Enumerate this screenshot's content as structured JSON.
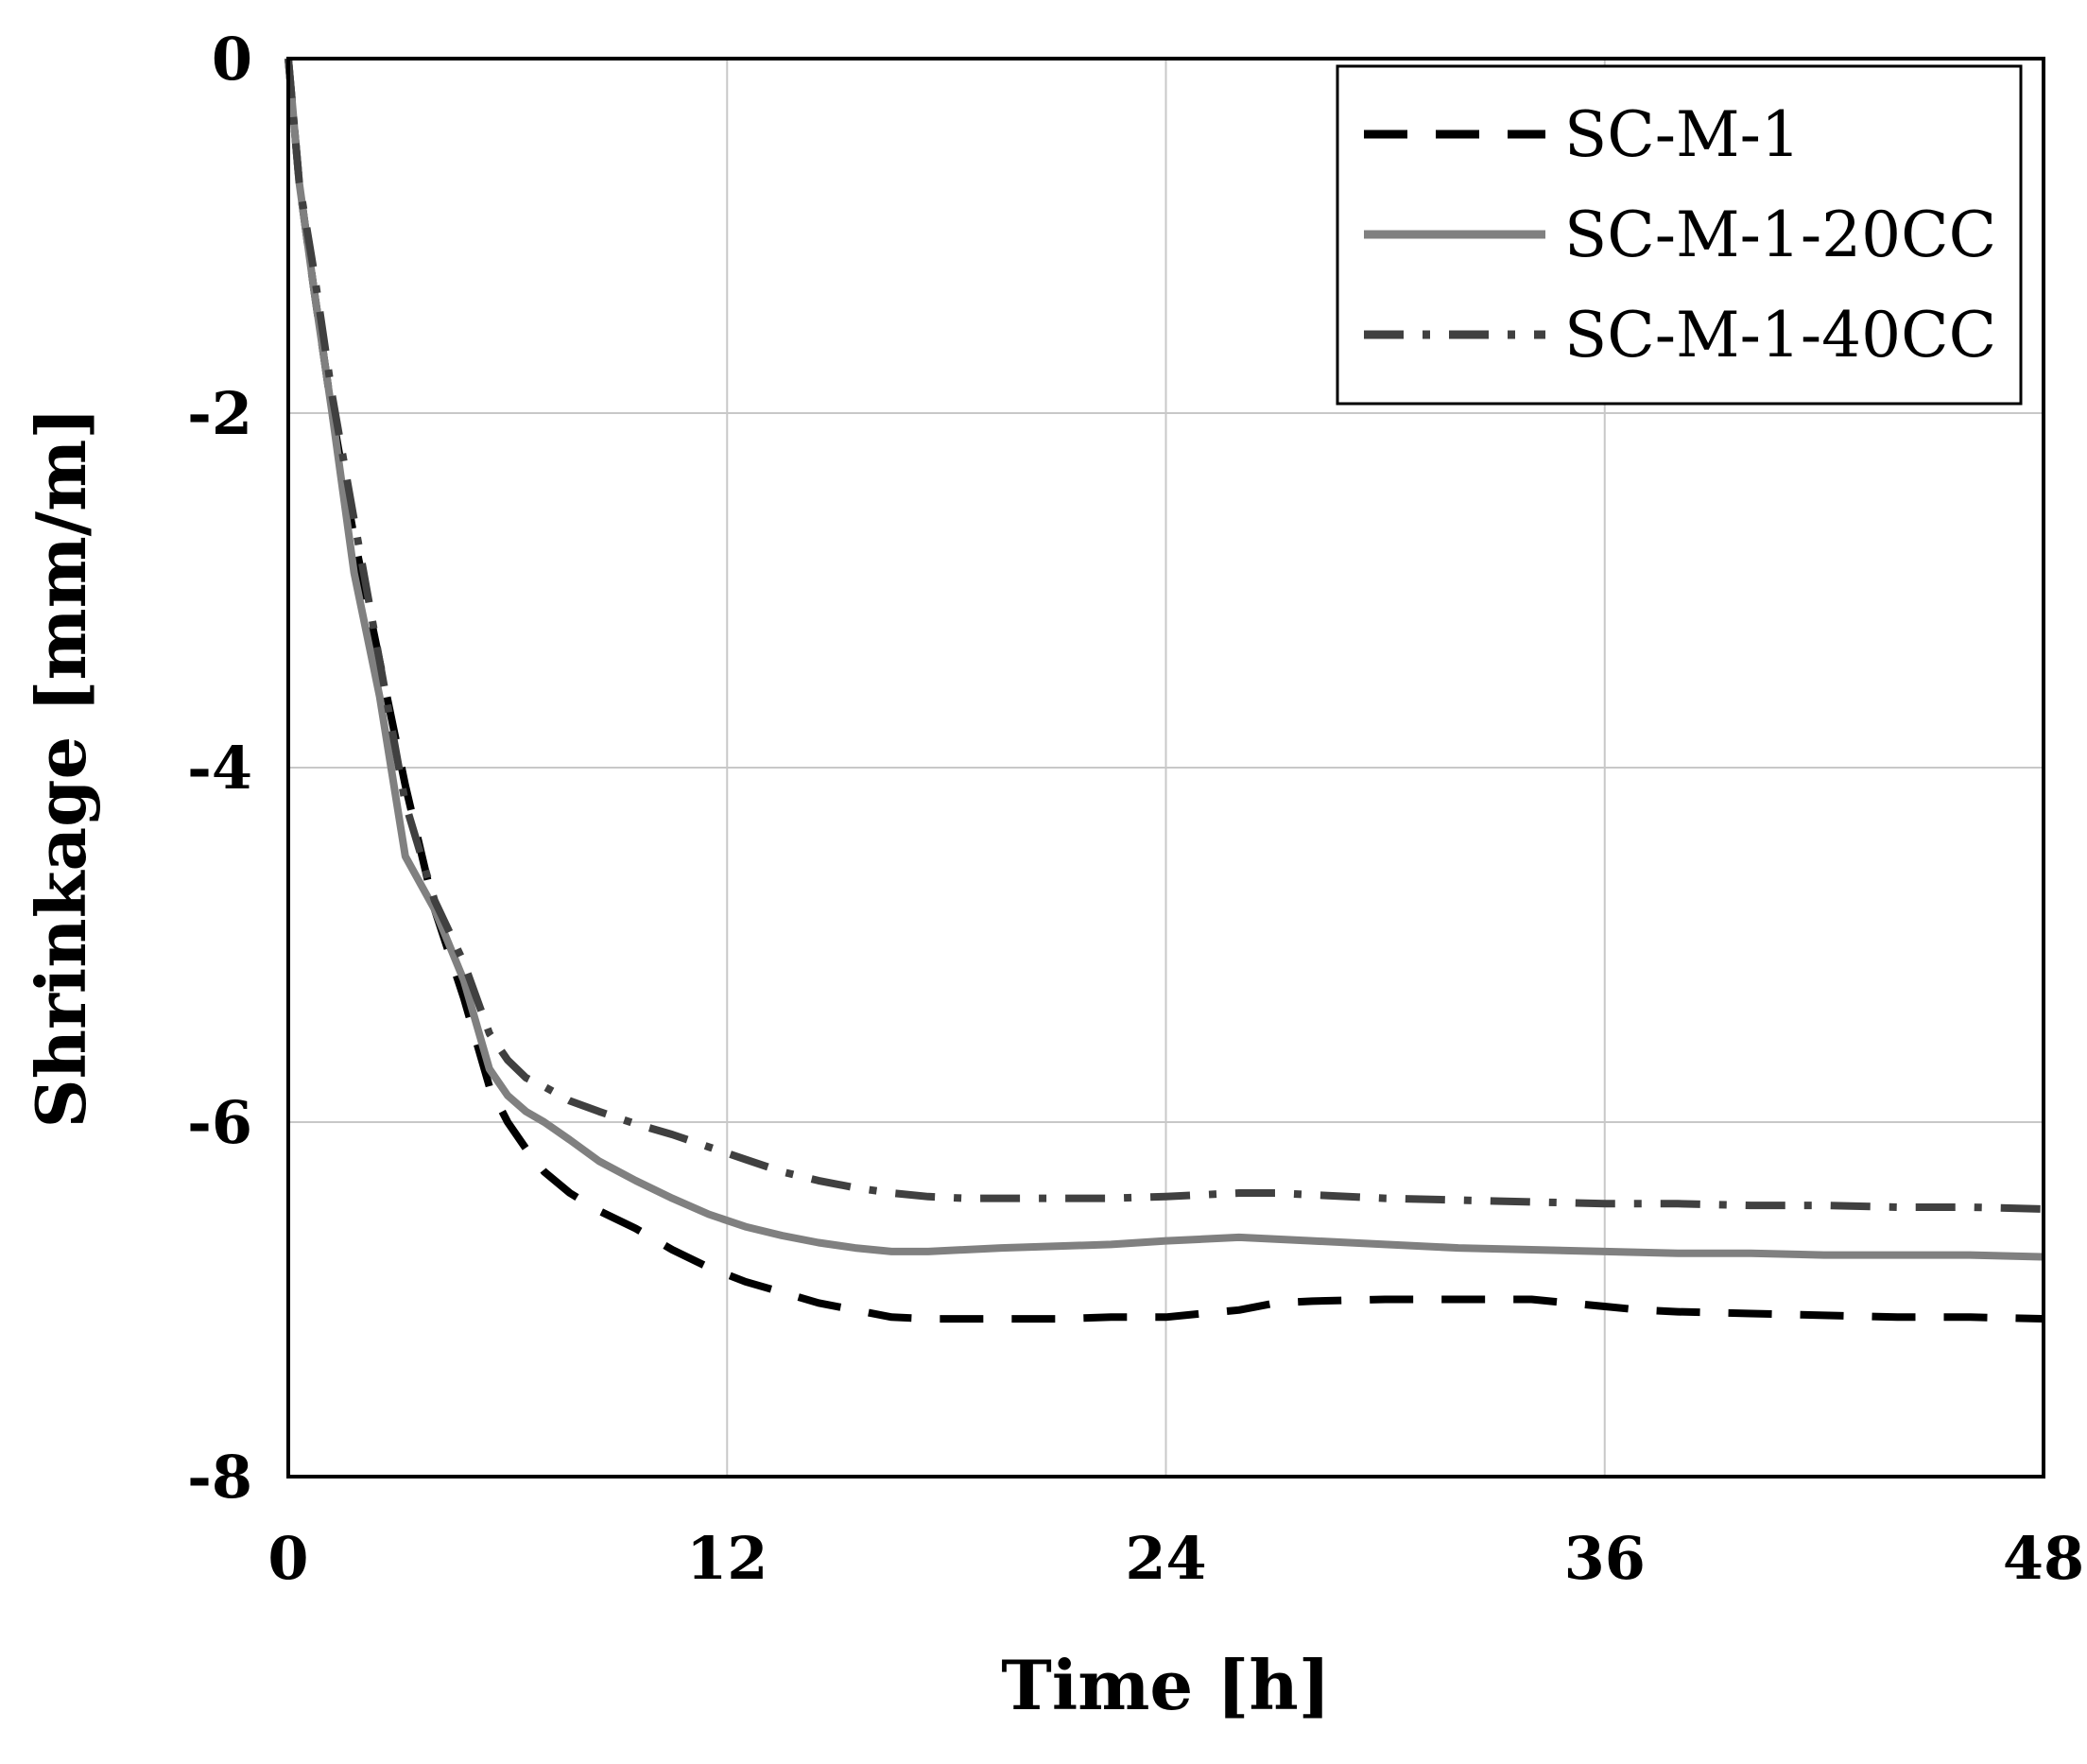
{
  "chart_data": {
    "type": "line",
    "title": "",
    "xlabel": "Time [h]",
    "ylabel": "Shrinkage [mm/m]",
    "xlim": [
      0,
      48
    ],
    "ylim": [
      -8,
      0
    ],
    "xticks": [
      0,
      12,
      24,
      36,
      48
    ],
    "yticks": [
      0,
      -2,
      -4,
      -6,
      -8
    ],
    "xtick_labels": [
      "0",
      "12",
      "24",
      "36",
      "48"
    ],
    "ytick_labels": [
      "0",
      "-2",
      "-4",
      "-6",
      "-8"
    ],
    "grid": true,
    "legend": {
      "position": "top-right",
      "entries": [
        "SC-M-1",
        "SC-M-1-20CC",
        "SC-M-1-40CC"
      ]
    },
    "series": [
      {
        "name": "SC-M-1",
        "color": "#000000",
        "style": "dashed",
        "x": [
          0,
          0.3,
          0.7,
          1.2,
          1.8,
          2.5,
          3.2,
          4.0,
          4.8,
          5.5,
          6.0,
          6.5,
          7.0,
          7.7,
          8.5,
          9.5,
          10.5,
          11.5,
          12.5,
          13.5,
          14.5,
          15.5,
          16.5,
          17.5,
          18.5,
          19.5,
          21,
          22.5,
          24,
          25,
          26,
          27,
          28,
          30,
          32,
          34,
          35,
          36,
          37,
          38,
          40,
          42,
          44,
          46,
          48
        ],
        "y": [
          0,
          -0.7,
          -1.3,
          -2.0,
          -2.7,
          -3.4,
          -4.1,
          -4.8,
          -5.3,
          -5.8,
          -6.0,
          -6.15,
          -6.28,
          -6.4,
          -6.5,
          -6.6,
          -6.72,
          -6.82,
          -6.9,
          -6.96,
          -7.02,
          -7.06,
          -7.1,
          -7.11,
          -7.11,
          -7.11,
          -7.11,
          -7.1,
          -7.1,
          -7.08,
          -7.06,
          -7.02,
          -7.01,
          -7.0,
          -7.0,
          -7.0,
          -7.02,
          -7.04,
          -7.06,
          -7.07,
          -7.08,
          -7.09,
          -7.1,
          -7.1,
          -7.11
        ]
      },
      {
        "name": "SC-M-1-20CC",
        "color": "#808080",
        "style": "solid",
        "x": [
          0,
          0.3,
          0.7,
          1.2,
          1.8,
          2.5,
          3.2,
          4.0,
          4.8,
          5.5,
          6.0,
          6.5,
          7.0,
          7.7,
          8.5,
          9.5,
          10.5,
          11.5,
          12.5,
          13.5,
          14.5,
          15.5,
          16.5,
          17.5,
          18.5,
          19.5,
          21,
          22.5,
          24,
          25,
          26,
          27,
          28,
          30,
          32,
          34,
          36,
          38,
          40,
          42,
          44,
          46,
          48
        ],
        "y": [
          0,
          -0.7,
          -1.3,
          -2.0,
          -2.9,
          -3.6,
          -4.5,
          -4.8,
          -5.2,
          -5.7,
          -5.85,
          -5.94,
          -6.0,
          -6.1,
          -6.22,
          -6.33,
          -6.43,
          -6.52,
          -6.59,
          -6.64,
          -6.68,
          -6.71,
          -6.73,
          -6.73,
          -6.72,
          -6.71,
          -6.7,
          -6.69,
          -6.67,
          -6.66,
          -6.65,
          -6.66,
          -6.67,
          -6.69,
          -6.71,
          -6.72,
          -6.73,
          -6.74,
          -6.74,
          -6.75,
          -6.75,
          -6.75,
          -6.76
        ]
      },
      {
        "name": "SC-M-1-40CC",
        "color": "#404040",
        "style": "dashdot",
        "x": [
          0,
          0.3,
          0.7,
          1.2,
          1.8,
          2.5,
          3.2,
          4.0,
          4.8,
          5.5,
          6.0,
          6.5,
          7.0,
          7.7,
          8.5,
          9.5,
          10.5,
          11.5,
          12.5,
          13.5,
          14.5,
          15.5,
          16.5,
          17.5,
          18.5,
          19.5,
          21,
          22.5,
          24,
          25,
          26,
          27,
          28,
          30,
          32,
          34,
          36,
          38,
          40,
          42,
          44,
          46,
          48
        ],
        "y": [
          0,
          -0.7,
          -1.2,
          -1.9,
          -2.6,
          -3.4,
          -4.2,
          -4.75,
          -5.1,
          -5.5,
          -5.65,
          -5.75,
          -5.8,
          -5.88,
          -5.94,
          -6.01,
          -6.07,
          -6.14,
          -6.21,
          -6.28,
          -6.33,
          -6.37,
          -6.4,
          -6.42,
          -6.43,
          -6.43,
          -6.43,
          -6.43,
          -6.42,
          -6.41,
          -6.4,
          -6.4,
          -6.41,
          -6.43,
          -6.44,
          -6.45,
          -6.46,
          -6.46,
          -6.47,
          -6.47,
          -6.48,
          -6.48,
          -6.49
        ]
      }
    ]
  }
}
